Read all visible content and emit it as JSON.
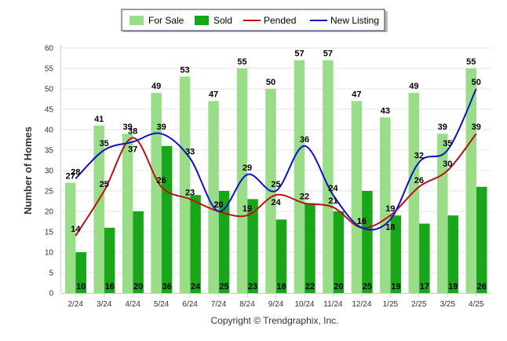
{
  "chart_data": {
    "type": "bar",
    "title": "",
    "xlabel": "",
    "ylabel": "Number of Homes",
    "ylim": [
      0,
      60
    ],
    "ytick_step": 5,
    "grid": true,
    "legend_position": "top",
    "categories": [
      "2/24",
      "3/24",
      "4/24",
      "5/24",
      "6/24",
      "7/24",
      "8/24",
      "9/24",
      "10/24",
      "11/24",
      "12/24",
      "1/25",
      "2/25",
      "3/25",
      "4/25"
    ],
    "series": [
      {
        "name": "For Sale",
        "kind": "bar",
        "color": "#99dd88",
        "values": [
          27,
          41,
          39,
          49,
          53,
          47,
          55,
          50,
          57,
          57,
          47,
          43,
          49,
          39,
          55
        ]
      },
      {
        "name": "Sold",
        "kind": "bar",
        "color": "#1aa61a",
        "values": [
          10,
          16,
          20,
          36,
          24,
          25,
          23,
          18,
          22,
          20,
          25,
          19,
          17,
          19,
          26
        ]
      },
      {
        "name": "Pended",
        "kind": "line",
        "color": "#bb1111",
        "values": [
          14,
          25,
          38,
          26,
          23,
          20,
          19,
          24,
          22,
          21,
          16,
          19,
          26,
          30,
          39
        ]
      },
      {
        "name": "New Listing",
        "kind": "line",
        "color": "#1111cc",
        "values": [
          28,
          35,
          37,
          39,
          33,
          20,
          29,
          25,
          36,
          24,
          16,
          18,
          32,
          35,
          50
        ]
      }
    ],
    "credit": "Copyright © Trendgraphix, Inc."
  }
}
